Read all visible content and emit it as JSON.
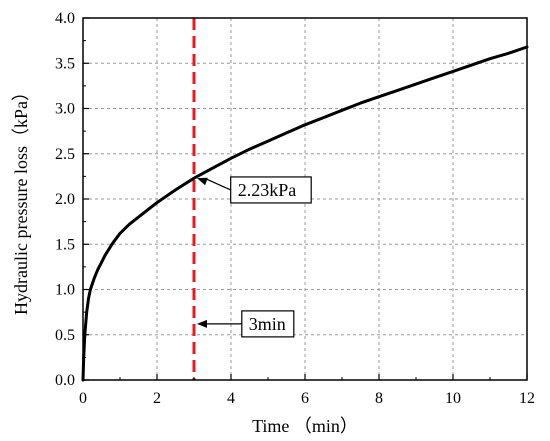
{
  "chart_data": {
    "type": "line",
    "title": "",
    "xlabel": "Time （min）",
    "ylabel": "Hydraulic pressure loss（kPa）",
    "xlim": [
      0,
      12
    ],
    "ylim": [
      0,
      4
    ],
    "xticks": [
      0,
      2,
      4,
      6,
      8,
      10,
      12
    ],
    "yticks": [
      0.0,
      0.5,
      1.0,
      1.5,
      2.0,
      2.5,
      3.0,
      3.5,
      4.0
    ],
    "ytick_labels": [
      "0.0",
      "0.5",
      "1.0",
      "1.5",
      "2.0",
      "2.5",
      "3.0",
      "3.5",
      "4.0"
    ],
    "grid": true,
    "legend": "none",
    "series": [
      {
        "color": "#000000",
        "x": [
          0,
          0.02,
          0.05,
          0.1,
          0.15,
          0.2,
          0.3,
          0.4,
          0.5,
          0.6,
          0.8,
          1.0,
          1.25,
          1.5,
          2.0,
          2.5,
          3.0,
          3.5,
          4.0,
          4.5,
          5.0,
          5.5,
          6.0,
          6.5,
          7.0,
          7.5,
          8.0,
          8.5,
          9.0,
          9.5,
          10.0,
          10.5,
          11.0,
          11.5,
          12.0
        ],
        "y": [
          0.0,
          0.25,
          0.5,
          0.75,
          0.9,
          1.0,
          1.12,
          1.22,
          1.3,
          1.38,
          1.51,
          1.62,
          1.72,
          1.8,
          1.96,
          2.1,
          2.23,
          2.34,
          2.45,
          2.55,
          2.64,
          2.73,
          2.82,
          2.9,
          2.98,
          3.06,
          3.13,
          3.2,
          3.27,
          3.34,
          3.41,
          3.48,
          3.55,
          3.61,
          3.68
        ]
      }
    ],
    "marker_line": {
      "x": 3,
      "color": "#e8191f"
    },
    "annotations": [
      {
        "text": "2.23kPa",
        "point": [
          3,
          2.23
        ],
        "box": [
          4.1,
          2.1
        ]
      },
      {
        "text": "3min",
        "point": [
          3,
          0.62
        ],
        "box": [
          4.4,
          0.62
        ]
      }
    ]
  }
}
